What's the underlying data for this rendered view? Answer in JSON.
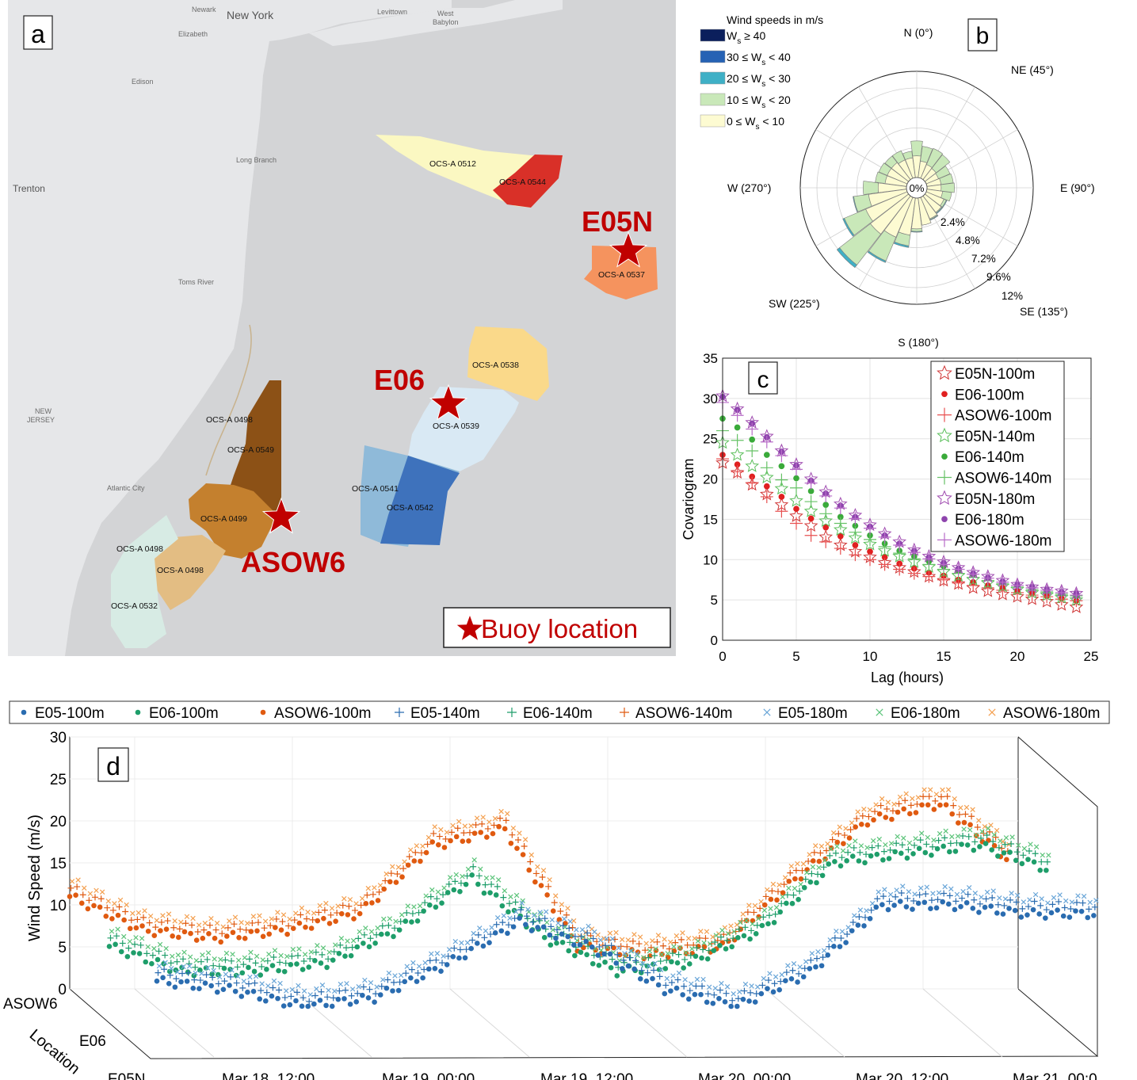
{
  "panel_labels": {
    "a": "a",
    "b": "b",
    "c": "c",
    "d": "d"
  },
  "map": {
    "places": [
      "Newark",
      "New York",
      "Levittown",
      "West",
      "Babylon",
      "Elizabeth",
      "Edison",
      "Trenton",
      "Long Branch",
      "Toms River",
      "NEW",
      "JERSEY",
      "Atlantic City"
    ],
    "lease_areas": [
      "OCS-A 0512",
      "OCS-A 0544",
      "OCS-A 0537",
      "OCS-A 0538",
      "OCS-A 0539",
      "OCS-A 0498",
      "OCS-A 0549",
      "OCS-A 0541",
      "OCS-A 0542",
      "OCS-A 0499",
      "OCS-A 0498",
      "OCS-A 0498",
      "OCS-A 0532"
    ],
    "buoys": [
      "E05N",
      "E06",
      "ASOW6"
    ],
    "legend": "Buoy location",
    "colors": {
      "buoy": "#c00000",
      "water": "#d3d4d6",
      "land": "#e6e7e9"
    }
  },
  "windrose": {
    "legend_title": "Wind speeds in m/s",
    "bins": [
      {
        "label": "W",
        "sub": "s",
        "text_a": "",
        "text_b": " ≥ 40",
        "color": "#0b1f5c"
      },
      {
        "label": "W",
        "sub": "s",
        "text_a": "30 ≤ ",
        "text_b": " < 40",
        "color": "#2662b4"
      },
      {
        "label": "W",
        "sub": "s",
        "text_a": "20 ≤ ",
        "text_b": " < 30",
        "color": "#3fb0c6"
      },
      {
        "label": "W",
        "sub": "s",
        "text_a": "10 ≤ ",
        "text_b": " < 20",
        "color": "#c9e8b9"
      },
      {
        "label": "W",
        "sub": "s",
        "text_a": "0 ≤ ",
        "text_b": " < 10",
        "color": "#fdfbd2"
      }
    ],
    "directions": [
      "N (0°)",
      "NE (45°)",
      "E (90°)",
      "SE (135°)",
      "S (180°)",
      "SW (225°)",
      "W (270°)"
    ],
    "center_label": "0%",
    "ring_labels": [
      "2.4%",
      "4.8%",
      "7.2%",
      "9.6%",
      "12%"
    ],
    "sectors_deg": [
      0,
      15,
      30,
      45,
      60,
      75,
      90,
      105,
      120,
      135,
      150,
      165,
      180,
      195,
      210,
      225,
      240,
      255,
      270,
      285,
      300,
      315,
      330,
      345
    ],
    "freq_pct_lt10": [
      2.6,
      2.0,
      1.8,
      1.7,
      1.6,
      1.7,
      1.7,
      1.9,
      2.3,
      2.5,
      2.8,
      3.3,
      3.7,
      4.5,
      5.2,
      5.8,
      5.4,
      4.6,
      3.4,
      2.6,
      2.6,
      2.6,
      2.4,
      2.4
    ],
    "freq_pct_lt20": [
      4.4,
      3.8,
      3.9,
      3.8,
      3.1,
      3.2,
      3.3,
      3.0,
      2.6,
      2.6,
      2.9,
      3.2,
      4.0,
      5.8,
      8.3,
      10.5,
      8.2,
      6.4,
      5.2,
      3.8,
      3.7,
      3.6,
      3.6,
      3.2
    ],
    "freq_pct_lt30": [
      4.4,
      3.8,
      3.9,
      3.8,
      3.1,
      3.2,
      3.3,
      3.0,
      2.7,
      2.7,
      3.0,
      3.3,
      4.1,
      6.0,
      8.5,
      10.9,
      8.4,
      6.5,
      5.2,
      3.8,
      3.7,
      3.6,
      3.6,
      3.2
    ]
  },
  "chart_data": [
    {
      "type": "scatter",
      "title": "",
      "xlabel": "Lag (hours)",
      "ylabel": "Covariogram",
      "xlim": [
        0,
        25
      ],
      "ylim": [
        0,
        35
      ],
      "xticks": [
        0,
        5,
        10,
        15,
        20,
        25
      ],
      "yticks": [
        0,
        5,
        10,
        15,
        20,
        25,
        30,
        35
      ],
      "grid": true,
      "legend_position": "top-right",
      "x": [
        0,
        1,
        2,
        3,
        4,
        5,
        6,
        7,
        8,
        9,
        10,
        11,
        12,
        13,
        14,
        15,
        16,
        17,
        18,
        19,
        20,
        21,
        22,
        23,
        24
      ],
      "series": [
        {
          "name": "E05N-100m",
          "marker": "star",
          "color": "#d03535",
          "values": [
            22.0,
            20.8,
            19.3,
            18.1,
            16.8,
            15.4,
            14.2,
            12.8,
            11.8,
            11.0,
            10.3,
            9.6,
            9.0,
            8.5,
            7.9,
            7.4,
            7.0,
            6.5,
            6.1,
            5.7,
            5.4,
            5.1,
            4.8,
            4.4,
            4.1
          ]
        },
        {
          "name": "E06-100m",
          "marker": "dot",
          "color": "#e02020",
          "values": [
            23.0,
            21.8,
            20.3,
            19.1,
            17.8,
            16.3,
            15.1,
            14.0,
            12.9,
            11.8,
            11.0,
            10.3,
            9.5,
            8.9,
            8.4,
            8.0,
            7.5,
            7.2,
            6.8,
            6.5,
            6.1,
            5.8,
            5.5,
            5.2,
            4.9
          ]
        },
        {
          "name": "ASOW6-100m",
          "marker": "plus",
          "color": "#e85050",
          "values": [
            22.5,
            20.9,
            19.5,
            17.8,
            16.0,
            14.5,
            13.0,
            12.2,
            11.4,
            10.6,
            10.0,
            9.4,
            8.8,
            8.3,
            7.9,
            7.5,
            7.1,
            6.8,
            6.5,
            6.2,
            5.9,
            5.6,
            5.4,
            5.1,
            4.9
          ]
        },
        {
          "name": "E05N-140m",
          "marker": "star",
          "color": "#5cbf5c",
          "values": [
            24.5,
            23.0,
            21.6,
            20.2,
            18.8,
            17.3,
            16.0,
            14.8,
            13.7,
            12.7,
            11.9,
            11.1,
            10.4,
            9.7,
            9.1,
            8.5,
            8.0,
            7.5,
            7.1,
            6.7,
            6.3,
            5.9,
            5.6,
            5.3,
            5.0
          ]
        },
        {
          "name": "E06-140m",
          "marker": "dot",
          "color": "#3aaa3a",
          "values": [
            27.5,
            26.4,
            24.9,
            23.0,
            21.6,
            20.1,
            18.5,
            16.8,
            15.3,
            14.2,
            13.0,
            12.0,
            11.1,
            10.4,
            9.8,
            9.2,
            8.6,
            8.1,
            7.7,
            7.2,
            6.8,
            6.5,
            6.1,
            5.8,
            5.5
          ]
        },
        {
          "name": "ASOW6-140m",
          "marker": "plus",
          "color": "#66c266",
          "values": [
            26.0,
            24.8,
            23.5,
            21.4,
            19.9,
            18.9,
            17.2,
            15.7,
            14.5,
            13.4,
            12.5,
            11.6,
            10.8,
            10.1,
            9.4,
            8.8,
            8.3,
            7.8,
            7.4,
            7.0,
            6.6,
            6.3,
            6.0,
            5.7,
            5.5
          ]
        },
        {
          "name": "E05N-180m",
          "marker": "star",
          "color": "#a04cb0",
          "values": [
            30.3,
            28.7,
            27.0,
            25.3,
            23.5,
            21.8,
            20.0,
            18.4,
            16.9,
            15.5,
            14.3,
            13.2,
            12.2,
            11.2,
            10.4,
            9.7,
            9.0,
            8.4,
            7.9,
            7.4,
            6.9,
            6.6,
            6.3,
            6.1,
            5.8
          ]
        },
        {
          "name": "E06-180m",
          "marker": "dot",
          "color": "#8e44ad",
          "values": [
            30.2,
            28.6,
            26.9,
            25.2,
            23.4,
            21.7,
            19.8,
            18.2,
            16.7,
            15.3,
            14.1,
            13.0,
            12.0,
            11.1,
            10.3,
            9.6,
            8.9,
            8.3,
            7.8,
            7.3,
            6.9,
            6.6,
            6.3,
            6.0,
            5.8
          ]
        },
        {
          "name": "ASOW6-180m",
          "marker": "plus",
          "color": "#b86cc8",
          "values": [
            29.5,
            27.9,
            26.2,
            24.6,
            22.9,
            21.2,
            19.5,
            17.9,
            16.4,
            15.1,
            13.9,
            12.8,
            11.8,
            10.9,
            10.1,
            9.4,
            8.8,
            8.2,
            7.7,
            7.2,
            6.8,
            6.5,
            6.2,
            5.9,
            5.6
          ]
        }
      ]
    },
    {
      "type": "scatter",
      "title": "",
      "xlabel": "",
      "ylabel": "Wind Speed (m/s)",
      "zlabel": "Location",
      "ylim": [
        0,
        30
      ],
      "yticks": [
        0,
        5,
        10,
        15,
        20,
        25,
        30
      ],
      "locations": [
        "ASOW6",
        "E06",
        "E05N"
      ],
      "time_ticks": [
        "Mar 18, 12:00",
        "Mar 19, 00:00",
        "Mar 19, 12:00",
        "Mar 20, 00:00",
        "Mar 20, 12:00",
        "Mar 21, 00:0"
      ],
      "time_hours": [
        0,
        6,
        12,
        18,
        24,
        30,
        36,
        42,
        48,
        54,
        60,
        66,
        72,
        78
      ],
      "legend": [
        "E05-100m",
        "E06-100m",
        "ASOW6-100m",
        "E05-140m",
        "E06-140m",
        "ASOW6-140m",
        "E05-180m",
        "E06-180m",
        "ASOW6-180m"
      ],
      "legend_colors": [
        "#2a6cb0",
        "#1e9e6a",
        "#e05a10",
        "#2a6cb0",
        "#1e9e6a",
        "#e05a10",
        "#6aa6d8",
        "#5cc47a",
        "#f4a050"
      ],
      "legend_markers": [
        "dot",
        "dot",
        "dot",
        "plus",
        "plus",
        "plus",
        "cross",
        "cross",
        "cross"
      ],
      "series": [
        {
          "name": "ASOW6-100m",
          "values": [
            11,
            7,
            6,
            7,
            9,
            17,
            19,
            5,
            4,
            5,
            13,
            20,
            22,
            15
          ]
        },
        {
          "name": "E06-100m",
          "values": [
            6,
            3,
            3,
            4,
            8,
            14,
            7,
            3,
            4,
            8,
            16,
            17,
            18,
            15
          ]
        },
        {
          "name": "E05-100m",
          "values": [
            3,
            2,
            0,
            1,
            5,
            10,
            7,
            2,
            0,
            4,
            12,
            12,
            11,
            11
          ]
        }
      ]
    }
  ]
}
